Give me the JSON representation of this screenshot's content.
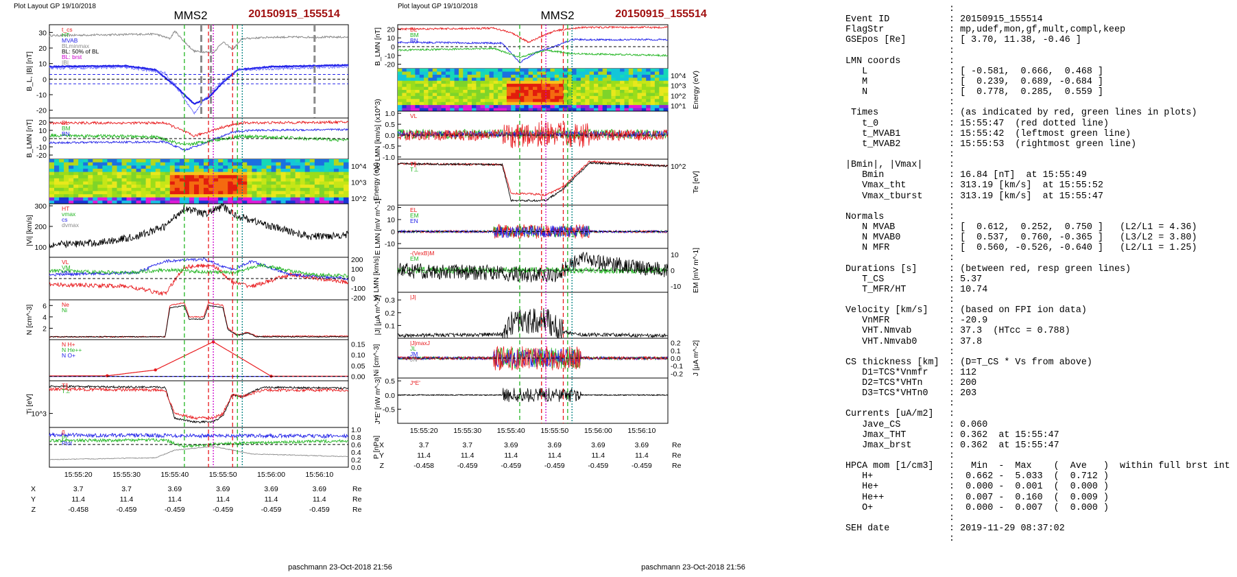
{
  "header": {
    "left_layout": "Plot Layout GP 19/10/2018",
    "right_layout": "Plot layout GP 19/10/2018",
    "spacecraft": "MMS2",
    "event": "20150915_155514",
    "event_color": "#a01010",
    "footer": "paschmann 23-Oct-2018 21:56"
  },
  "colors": {
    "red": "#e8191c",
    "green": "#22b522",
    "blue": "#2020e8",
    "black": "#000000",
    "magenta": "#cc00cc",
    "gray": "#8a8a8a",
    "teal": "#008080"
  },
  "chart_data": [
    {
      "type": "line",
      "id": "left-stack",
      "x_tick_labels": [
        "15:55:20",
        "15:55:30",
        "15:55:40",
        "15:55:50",
        "15:56:00",
        "15:56:10"
      ],
      "event_lines": [
        {
          "label": "t_MVAB1",
          "time": "15:55:42",
          "color": "green",
          "style": "dashed"
        },
        {
          "label": "t_0",
          "time": "15:55:47",
          "color": "red",
          "style": "dashed"
        },
        {
          "label": "Vmax_tht",
          "time": "15:55:52",
          "color": "red",
          "style": "dashed"
        },
        {
          "label": "t_MVAB2",
          "time": "15:55:53",
          "color": "green",
          "style": "dashed"
        }
      ],
      "orbit_rows": [
        {
          "name": "X",
          "values": [
            "3.7",
            "3.7",
            "3.69",
            "3.69",
            "3.69",
            "3.69"
          ],
          "unit": "Re"
        },
        {
          "name": "Y",
          "values": [
            "11.4",
            "11.4",
            "11.4",
            "11.4",
            "11.4",
            "11.4"
          ],
          "unit": "Re"
        },
        {
          "name": "Z",
          "values": [
            "-0.458",
            "-0.459",
            "-0.459",
            "-0.459",
            "-0.459",
            "-0.459"
          ],
          "unit": "Re"
        }
      ],
      "panels": [
        {
          "ylabel": "B_L, |B| [nT]",
          "ticks": [
            "30",
            "20",
            "10",
            "0",
            "-10",
            "-20"
          ],
          "ylim": [
            -25,
            35
          ],
          "legend": [
            "t_cs",
            "HT",
            "MVAB",
            "BLminmax",
            "BL: 50% of BL",
            "BL: brst",
            "|B|"
          ]
        },
        {
          "ylabel": "B_LMN [nT]",
          "ticks": [
            "20",
            "10",
            "0",
            "-10",
            "-20"
          ],
          "ylim": [
            -25,
            25
          ],
          "legend": [
            "BL",
            "BM",
            "BN"
          ]
        },
        {
          "ylabel": "Energy (eV)",
          "right_ticks": [
            "10^4",
            "10^3",
            "10^2"
          ],
          "type": "spectrogram"
        },
        {
          "ylabel": "|Vi| [km/s]",
          "ticks": [
            "300",
            "200",
            "100"
          ],
          "ylim": [
            50,
            310
          ],
          "legend": [
            "HT",
            "vmax",
            "cs",
            "dvmax"
          ]
        },
        {
          "ylabel": "Vi LMN [km/s]",
          "right_ticks": [
            "200",
            "100",
            "0",
            "-100",
            "-200"
          ],
          "ylim": [
            -220,
            220
          ],
          "legend": [
            "VL",
            "VM",
            "VN"
          ]
        },
        {
          "ylabel": "N [cm^-3]",
          "ticks": [
            "6",
            "4",
            "2"
          ],
          "ylim": [
            0,
            7
          ],
          "legend": [
            "Ne",
            "Ni"
          ]
        },
        {
          "ylabel": "Ni [cm^-3]",
          "right_ticks": [
            "0.15",
            "0.10",
            "0.05",
            "0.00"
          ],
          "ylim": [
            -0.02,
            0.17
          ],
          "legend": [
            "N H+",
            "N He++",
            "N O+"
          ]
        },
        {
          "ylabel": "Ti [eV]",
          "ticks": [
            "10^3"
          ],
          "legend": [
            "T∥",
            "T⊥"
          ]
        },
        {
          "ylabel": "P [nPa]",
          "right_ticks": [
            "1.0",
            "0.8",
            "0.6",
            "0.4",
            "0.2",
            "0.0"
          ],
          "ylim": [
            0,
            1.05
          ],
          "legend": [
            "β",
            "Pi",
            "Ptot"
          ]
        }
      ]
    },
    {
      "type": "line",
      "id": "right-stack",
      "x_tick_labels": [
        "15:55:20",
        "15:55:30",
        "15:55:40",
        "15:55:50",
        "15:56:00",
        "15:56:10"
      ],
      "orbit_rows": [
        {
          "name": "X",
          "values": [
            "3.7",
            "3.7",
            "3.69",
            "3.69",
            "3.69",
            "3.69"
          ],
          "unit": "Re"
        },
        {
          "name": "Y",
          "values": [
            "11.4",
            "11.4",
            "11.4",
            "11.4",
            "11.4",
            "11.4"
          ],
          "unit": "Re"
        },
        {
          "name": "Z",
          "values": [
            "-0.458",
            "-0.459",
            "-0.459",
            "-0.459",
            "-0.459",
            "-0.459"
          ],
          "unit": "Re"
        }
      ],
      "panels": [
        {
          "ylabel": "B_LMN [nT]",
          "ticks": [
            "20",
            "10",
            "0",
            "-10",
            "-20"
          ],
          "ylim": [
            -25,
            25
          ],
          "legend": [
            "BL",
            "BM",
            "BN"
          ]
        },
        {
          "ylabel": "Energy (eV)",
          "right_ticks": [
            "10^4",
            "10^3",
            "10^2",
            "10^1"
          ],
          "type": "spectrogram"
        },
        {
          "ylabel": "Ve LMN [km/s] (x10^3)",
          "ticks": [
            "1.0",
            "0.5",
            "0.0",
            "-0.5",
            "-1.0"
          ],
          "ylim": [
            -1.1,
            1.1
          ],
          "legend": [
            "VL"
          ]
        },
        {
          "ylabel": "Te [eV]",
          "right_ticks": [
            "10^2"
          ],
          "legend": [
            "T∥",
            "T⊥"
          ]
        },
        {
          "ylabel": "E LMN [mV m^-1]",
          "ticks": [
            "20",
            "10",
            "0",
            "-10"
          ],
          "ylim": [
            -14,
            22
          ],
          "legend": [
            "EL",
            "EM",
            "EN"
          ]
        },
        {
          "ylabel": "EM [mV m^-1]",
          "right_ticks": [
            "10",
            "0",
            "-10"
          ],
          "ylim": [
            -14,
            14
          ],
          "legend": [
            "-(VexB)M",
            "EM"
          ]
        },
        {
          "ylabel": "|J| [μA m^-2]",
          "ticks": [
            "0.3",
            "0.2",
            "0.1"
          ],
          "ylim": [
            0,
            0.36
          ],
          "legend": [
            "|J|"
          ]
        },
        {
          "ylabel": "J [μA m^-2]",
          "right_ticks": [
            "0.2",
            "0.1",
            "0.0",
            "-0.1",
            "-0.2"
          ],
          "ylim": [
            -0.26,
            0.26
          ],
          "legend": [
            "|J|maxJ",
            "JL",
            "JM",
            "JN"
          ]
        },
        {
          "ylabel": "J*E' [nW m^-3]",
          "ticks": [
            "0.5",
            "0.0",
            "-0.5"
          ],
          "ylim": [
            -1.0,
            0.6
          ],
          "legend": [
            "J*E'"
          ]
        }
      ]
    }
  ],
  "info": [
    [
      "",
      ":",
      ""
    ],
    [
      "Event ID",
      ": 20150915_155514",
      ""
    ],
    [
      "FlagStr",
      ": mp,udef,mon,gf,mult,compl,keep",
      ""
    ],
    [
      "GSEpos [Re]",
      ": [ 3.70, 11.38, -0.46 ]",
      ""
    ],
    [
      "",
      ":",
      ""
    ],
    [
      "LMN coords",
      ":",
      ""
    ],
    [
      "   L",
      ": [ -0.581,  0.666,  0.468 ]",
      ""
    ],
    [
      "   M",
      ": [  0.239,  0.689, -0.684 ]",
      ""
    ],
    [
      "   N",
      ": [  0.778,  0.285,  0.559 ]",
      ""
    ],
    [
      "",
      ":",
      ""
    ],
    [
      " Times",
      ": (as indicated by red, green lines in plots)",
      ""
    ],
    [
      "   t_0",
      ": 15:55:47  (red dotted line)",
      ""
    ],
    [
      "   t_MVAB1",
      ": 15:55:42  (leftmost green line)",
      ""
    ],
    [
      "   t_MVAB2",
      ": 15:55:53  (rightmost green line)",
      ""
    ],
    [
      "",
      ":",
      ""
    ],
    [
      "|Bmin|, |Vmax|",
      ":",
      ""
    ],
    [
      "   Bmin",
      ": 16.84 [nT]  at 15:55:49",
      ""
    ],
    [
      "   Vmax_tht",
      ": 313.19 [km/s]  at 15:55:52",
      ""
    ],
    [
      "   Vmax_tburst",
      ": 313.19 [km/s]  at 15:55:47",
      ""
    ],
    [
      "",
      ":",
      ""
    ],
    [
      "Normals",
      ":",
      ""
    ],
    [
      "   N MVAB",
      ": [  0.612,  0.252,  0.750 ]   (L2/L1 = 4.36)",
      ""
    ],
    [
      "   N MVAB0",
      ": [  0.537,  0.760, -0.365 ]   (L3/L2 = 3.80)",
      ""
    ],
    [
      "   N MFR",
      ": [  0.560, -0.526, -0.640 ]   (L2/L1 = 1.25)",
      ""
    ],
    [
      "",
      ":",
      ""
    ],
    [
      "Durations [s]",
      ": (between red, resp green lines)",
      ""
    ],
    [
      "   T_CS",
      ": 5.37",
      ""
    ],
    [
      "   T_MFR/HT",
      ": 10.74",
      ""
    ],
    [
      "",
      ":",
      ""
    ],
    [
      "Velocity [km/s]",
      ": (based on FPI ion data)",
      ""
    ],
    [
      "   VnMFR",
      ": -20.9",
      ""
    ],
    [
      "   VHT.Nmvab",
      ": 37.3  (HTcc = 0.788)",
      ""
    ],
    [
      "   VHT.Nmvab0",
      ": 37.8",
      ""
    ],
    [
      "",
      ":",
      ""
    ],
    [
      "CS thickness [km]",
      ": (D=T_CS * Vs from above)",
      ""
    ],
    [
      "   D1=TCS*Vnmfr",
      ": 112",
      ""
    ],
    [
      "   D2=TCS*VHTn",
      ": 200",
      ""
    ],
    [
      "   D3=TCS*VHTn0",
      ": 203",
      ""
    ],
    [
      "",
      ":",
      ""
    ],
    [
      "Currents [uA/m2]",
      ":",
      ""
    ],
    [
      "   Jave_CS",
      ": 0.060",
      ""
    ],
    [
      "   Jmax_THT",
      ": 0.362  at 15:55:47",
      ""
    ],
    [
      "   Jmax_brst",
      ": 0.362  at 15:55:47",
      ""
    ],
    [
      "",
      ":",
      ""
    ],
    [
      "HPCA mom [1/cm3]",
      ":   Min  -  Max    (  Ave   )  within full brst int",
      ""
    ],
    [
      "   H+",
      ":  0.662 -  5.033  (  0.712 )",
      ""
    ],
    [
      "   He+",
      ":  0.000 -  0.001  (  0.000 )",
      ""
    ],
    [
      "   He++",
      ":  0.007 -  0.160  (  0.009 )",
      ""
    ],
    [
      "   O+",
      ":  0.000 -  0.007  (  0.000 )",
      ""
    ],
    [
      "",
      ":",
      ""
    ],
    [
      "SEH date",
      ": 2019-11-29 08:37:02",
      ""
    ],
    [
      "",
      ":",
      ""
    ]
  ]
}
